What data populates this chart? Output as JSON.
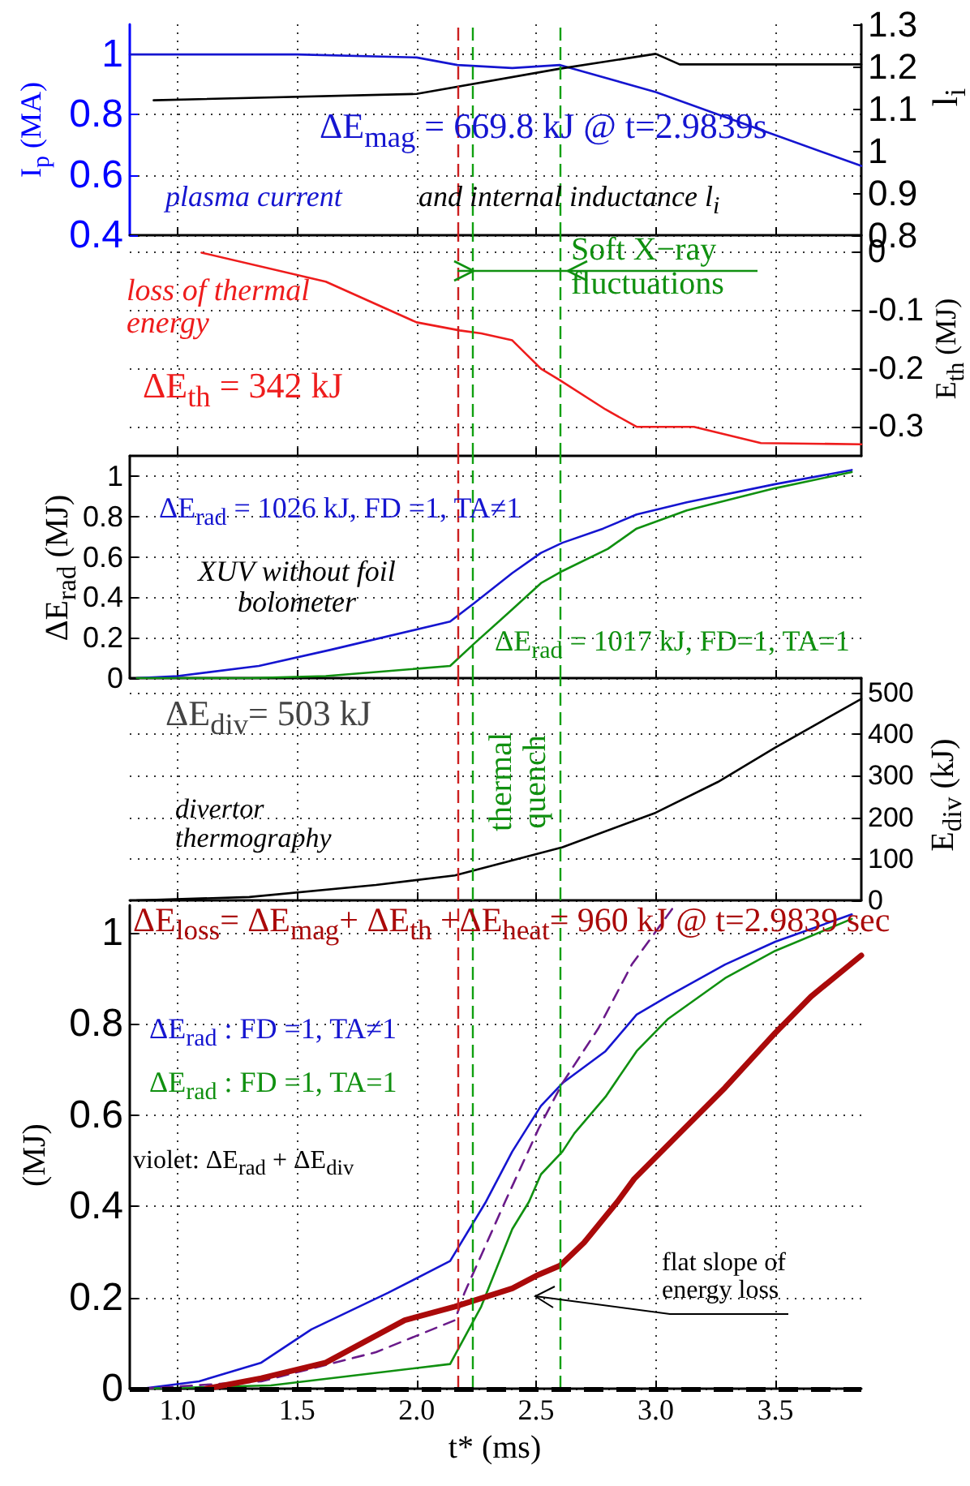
{
  "chart_data": [
    {
      "type": "line",
      "ylabel": "I$_{p}$ (MA)",
      "y2label": "l$_{i}$",
      "annotations": [
        "ΔE$_{mag}$ = 669.8 kJ @ t=2.9839s",
        "plasma current",
        "and internal inductance  l$_{i}$"
      ],
      "xlim": [
        0.8,
        3.86
      ],
      "xticks": [
        1,
        1.5,
        2,
        2.5,
        3,
        3.5
      ],
      "ylim": [
        0.4,
        1.1
      ],
      "yticks": [
        0.4,
        0.6,
        0.8,
        1
      ],
      "y2lim": [
        0.8,
        1.3
      ],
      "y2ticks": [
        0.8,
        0.9,
        1,
        1.1,
        1.2,
        1.3
      ],
      "tick_labels": "y",
      "grid": true,
      "ref_lines": [
        {
          "axis": "x",
          "value": 2.17,
          "color": "#cc2020",
          "line_style": "dashed"
        },
        {
          "axis": "x",
          "value": 2.23,
          "color": "#10a010",
          "line_style": "dashed"
        },
        {
          "axis": "x",
          "value": 2.6,
          "color": "#10a010",
          "line_style": "dashed"
        }
      ],
      "series": [
        {
          "color": "#1515d0",
          "x": [
            0.8,
            1.5,
            2.0,
            2.17,
            2.4,
            2.6,
            3.0,
            3.86
          ],
          "values": [
            1.0,
            1.0,
            0.99,
            0.965,
            0.955,
            0.965,
            0.875,
            0.63
          ]
        },
        {
          "color": "#000000",
          "axis": "y2",
          "x": [
            0.9,
            2.0,
            2.6,
            3.0,
            3.1,
            3.86
          ],
          "values": [
            1.12,
            1.135,
            1.195,
            1.23,
            1.205,
            1.205
          ]
        }
      ]
    },
    {
      "type": "line",
      "y2label": "E$_{th}$ (MJ)",
      "annotations": [
        "loss of thermal energy",
        "ΔE$_{th}$ = 342 kJ",
        "Soft X−ray fluctuations"
      ],
      "xlim": [
        0.8,
        3.86
      ],
      "xticks": [
        1,
        1.5,
        2,
        2.5,
        3,
        3.5
      ],
      "y2lim": [
        -0.35,
        0.03
      ],
      "y2ticks": [
        0,
        -0.1,
        -0.2,
        -0.3
      ],
      "tick_labels": "y",
      "grid": true,
      "ref_lines": [
        {
          "axis": "x",
          "value": 2.17,
          "color": "#cc2020",
          "line_style": "dashed"
        },
        {
          "axis": "x",
          "value": 2.23,
          "color": "#10a010",
          "line_style": "dashed"
        },
        {
          "axis": "x",
          "value": 2.6,
          "color": "#10a010",
          "line_style": "dashed"
        }
      ],
      "series": [
        {
          "color": "#ee1c1c",
          "axis": "y2",
          "x": [
            1.1,
            1.62,
            2.0,
            2.18,
            2.27,
            2.4,
            2.52,
            2.6,
            2.79,
            2.92,
            3.16,
            3.44,
            3.86
          ],
          "values": [
            0,
            -0.05,
            -0.12,
            -0.134,
            -0.139,
            -0.151,
            -0.2,
            -0.22,
            -0.27,
            -0.3,
            -0.3,
            -0.328,
            -0.33
          ]
        }
      ]
    },
    {
      "type": "line",
      "ylabel": "ΔE$_{rad}$  (MJ)",
      "annotations": [
        "ΔE$_{rad}$ = 1026 kJ, FD =1, TA≠1",
        "XUV without foil bolometer",
        "ΔE$_{rad}$ = 1017 kJ, FD=1, TA=1"
      ],
      "xlim": [
        0.8,
        3.86
      ],
      "xticks": [
        1,
        1.5,
        2,
        2.5,
        3,
        3.5
      ],
      "ylim": [
        0,
        1.1
      ],
      "yticks": [
        0,
        0.2,
        0.4,
        0.6,
        0.8,
        1
      ],
      "tick_labels": "y",
      "grid": true,
      "ref_lines": [
        {
          "axis": "x",
          "value": 2.17,
          "color": "#cc2020",
          "line_style": "dashed"
        },
        {
          "axis": "x",
          "value": 2.23,
          "color": "#10a010",
          "line_style": "dashed"
        },
        {
          "axis": "x",
          "value": 2.6,
          "color": "#10a010",
          "line_style": "dashed"
        }
      ],
      "series": [
        {
          "color": "#1515d0",
          "x": [
            0.83,
            1.0,
            1.34,
            1.64,
            2.14,
            2.24,
            2.4,
            2.52,
            2.61,
            2.78,
            2.92,
            3.13,
            3.5,
            3.82
          ],
          "values": [
            0,
            0.01,
            0.06,
            0.14,
            0.28,
            0.37,
            0.52,
            0.62,
            0.67,
            0.74,
            0.81,
            0.87,
            0.96,
            1.03
          ]
        },
        {
          "color": "#109010",
          "x": [
            0.83,
            1.3,
            1.62,
            2.14,
            2.24,
            2.4,
            2.52,
            2.61,
            2.8,
            2.92,
            3.13,
            3.5,
            3.82
          ],
          "values": [
            0,
            0,
            0.01,
            0.06,
            0.17,
            0.34,
            0.47,
            0.53,
            0.64,
            0.74,
            0.83,
            0.94,
            1.02
          ]
        }
      ]
    },
    {
      "type": "line",
      "y2label": "E$_{div}$ (kJ)",
      "annotations": [
        "ΔE$_{div}$= 503 kJ",
        "divertor thermography",
        "thermal quench"
      ],
      "xlim": [
        0.8,
        3.86
      ],
      "xticks": [
        1,
        1.5,
        2,
        2.5,
        3,
        3.5
      ],
      "y2lim": [
        0,
        535
      ],
      "y2ticks": [
        0,
        100,
        200,
        300,
        400,
        500
      ],
      "tick_labels": "y",
      "grid": true,
      "ref_lines": [
        {
          "axis": "x",
          "value": 2.17,
          "color": "#cc2020",
          "line_style": "dashed"
        },
        {
          "axis": "x",
          "value": 2.23,
          "color": "#10a010",
          "line_style": "dashed"
        },
        {
          "axis": "x",
          "value": 2.6,
          "color": "#10a010",
          "line_style": "dashed"
        }
      ],
      "series": [
        {
          "color": "#000000",
          "axis": "y2",
          "x": [
            0.83,
            1.3,
            1.83,
            2.16,
            2.61,
            3.0,
            3.26,
            3.5,
            3.86
          ],
          "values": [
            0,
            8,
            37,
            60,
            128,
            211,
            285,
            368,
            485
          ]
        }
      ]
    },
    {
      "type": "line",
      "xlabel": "t*  (ms)",
      "ylabel": "(MJ)",
      "annotations": [
        "ΔE$_{loss}$= ΔE$_{mag}$+ ΔE$_{th}$ +ΔE$_{heat}$= 960 kJ @ t=2.9839 sec",
        "ΔE$_{rad}$ : FD =1, TA≠1",
        "ΔE$_{rad}$ : FD =1, TA=1",
        "violet: ΔE$_{rad}$ + ΔE$_{div}$",
        "flat slope of energy loss"
      ],
      "xlim": [
        0.8,
        3.86
      ],
      "xticks": [
        {
          "value": 1,
          "label": "1.0"
        },
        1.5,
        {
          "value": 2,
          "label": "2.0"
        },
        2.5,
        {
          "value": 3,
          "label": "3.0"
        },
        3.5
      ],
      "ylim": [
        0,
        1.06
      ],
      "yticks": [
        0,
        0.2,
        0.4,
        0.6,
        0.8,
        1
      ],
      "grid": true,
      "ref_lines": [
        {
          "axis": "x",
          "value": 2.17,
          "color": "#cc2020",
          "line_style": "dashed"
        },
        {
          "axis": "x",
          "value": 2.23,
          "color": "#10a010",
          "line_style": "dashed"
        },
        {
          "axis": "x",
          "value": 2.6,
          "color": "#10a010",
          "line_style": "dashed"
        },
        {
          "axis": "y",
          "value": 0,
          "color": "#000000",
          "line_style": "dashed"
        }
      ],
      "series": [
        {
          "color": "#1515d0",
          "x": [
            0.85,
            1.09,
            1.35,
            1.56,
            1.88,
            2.14,
            2.29,
            2.4,
            2.52,
            2.61,
            2.79,
            2.92,
            3.05,
            3.29,
            3.5,
            3.82
          ],
          "values": [
            0,
            0.016,
            0.057,
            0.13,
            0.21,
            0.28,
            0.41,
            0.52,
            0.62,
            0.67,
            0.74,
            0.82,
            0.86,
            0.93,
            0.98,
            1.04
          ]
        },
        {
          "color": "#109010",
          "x": [
            0.85,
            1.39,
            2.14,
            2.27,
            2.4,
            2.47,
            2.52,
            2.61,
            2.66,
            2.79,
            2.92,
            3.05,
            3.29,
            3.5,
            3.82
          ],
          "values": [
            0,
            0.007,
            0.054,
            0.18,
            0.35,
            0.41,
            0.47,
            0.52,
            0.56,
            0.64,
            0.74,
            0.81,
            0.9,
            0.96,
            1.03
          ]
        },
        {
          "color": "#6a1a8a",
          "line_style": "dashed",
          "x": [
            0.85,
            1.35,
            1.83,
            2.16,
            2.2,
            2.37,
            2.51,
            2.61,
            2.76,
            2.9,
            3.08
          ],
          "values": [
            0,
            0.016,
            0.08,
            0.15,
            0.21,
            0.41,
            0.57,
            0.67,
            0.79,
            0.93,
            1.06
          ]
        },
        {
          "color": "#aa0a0a",
          "x": [
            1.12,
            1.35,
            1.62,
            1.95,
            2.16,
            2.4,
            2.51,
            2.6,
            2.7,
            2.84,
            2.91,
            3.1,
            3.29,
            3.5,
            3.65,
            3.86
          ],
          "values": [
            0,
            0.023,
            0.057,
            0.15,
            0.18,
            0.22,
            0.25,
            0.27,
            0.32,
            0.41,
            0.46,
            0.56,
            0.66,
            0.78,
            0.86,
            0.95
          ]
        }
      ]
    }
  ]
}
